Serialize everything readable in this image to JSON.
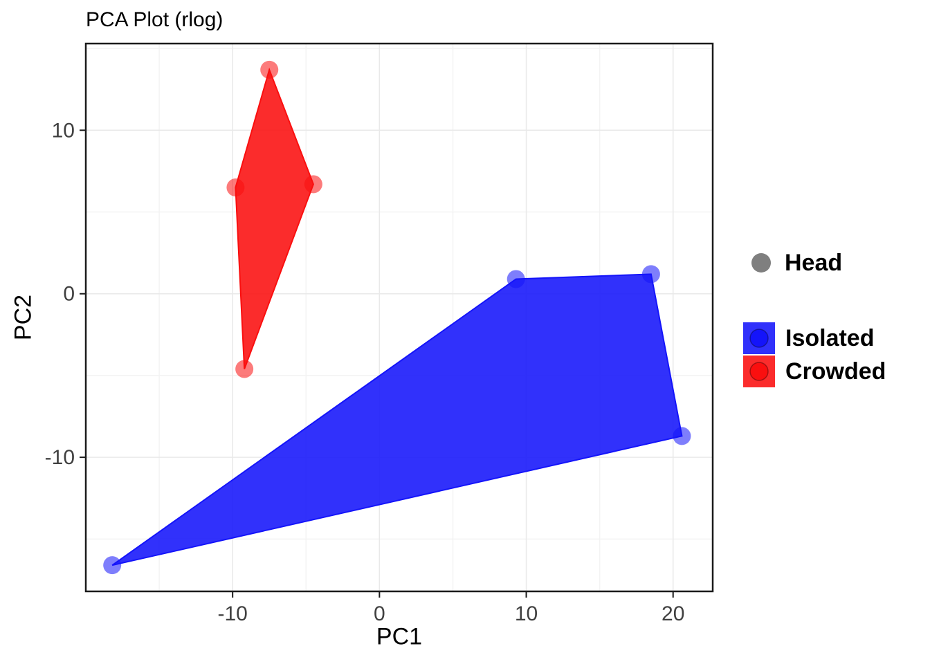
{
  "chart_data": {
    "type": "scatter",
    "title": "PCA Plot (rlog)",
    "xlabel": "PC1",
    "ylabel": "PC2",
    "xlim": [
      -20,
      22.7
    ],
    "ylim": [
      -18.2,
      15.3
    ],
    "x_ticks": [
      -10,
      0,
      10,
      20
    ],
    "y_ticks": [
      -10,
      0,
      10
    ],
    "x_minor_ticks": [
      -15,
      -5,
      5,
      15
    ],
    "y_minor_ticks": [
      -15,
      -5,
      5,
      15
    ],
    "grid": true,
    "legend_position": "right",
    "series": [
      {
        "name": "Isolated",
        "color": "#1414FA",
        "points": [
          [
            9.3,
            0.9
          ],
          [
            18.5,
            1.2
          ],
          [
            20.6,
            -8.7
          ],
          [
            -18.2,
            -16.6
          ]
        ]
      },
      {
        "name": "Crowded",
        "color": "#FA0F0F",
        "points": [
          [
            -7.5,
            13.7
          ],
          [
            -4.5,
            6.7
          ],
          [
            -9.2,
            -4.6
          ],
          [
            -9.8,
            6.5
          ]
        ]
      }
    ],
    "legend": {
      "shape_title": "Head",
      "shape_color": "#7F7F7F",
      "entries": [
        {
          "label": "Isolated",
          "color": "#1414FA"
        },
        {
          "label": "Crowded",
          "color": "#FA0F0F"
        }
      ]
    }
  }
}
